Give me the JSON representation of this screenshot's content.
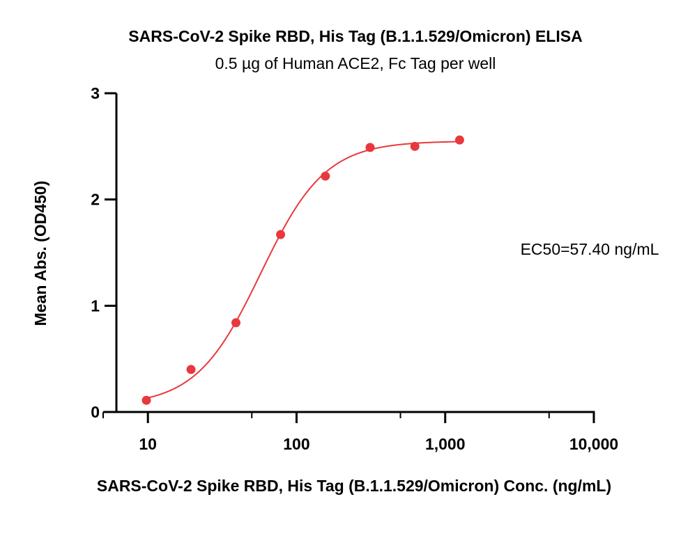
{
  "chart_data": {
    "type": "scatter",
    "title": "SARS-CoV-2 Spike RBD, His Tag (B.1.1.529/Omicron) ELISA",
    "subtitle": "0.5 µg of Human ACE2, Fc Tag per well",
    "xlabel": "SARS-CoV-2 Spike RBD, His Tag (B.1.1.529/Omicron) Conc. (ng/mL)",
    "ylabel": "Mean Abs. (OD450)",
    "x_scale": "log",
    "xlim": [
      5,
      10000
    ],
    "ylim": [
      0,
      3
    ],
    "x_ticks": [
      10,
      100,
      1000,
      10000
    ],
    "x_tick_labels": [
      "10",
      "100",
      "1,000",
      "10,000"
    ],
    "y_ticks": [
      0,
      1,
      2,
      3
    ],
    "y_tick_labels": [
      "0",
      "1",
      "2",
      "3"
    ],
    "grid": false,
    "annotation": "EC50=57.40 ng/mL",
    "color": "#e8383d",
    "series": [
      {
        "x": [
          9.77,
          19.5,
          39.1,
          78.1,
          156.3,
          312.5,
          625,
          1250
        ],
        "y": [
          0.11,
          0.4,
          0.84,
          1.67,
          2.22,
          2.49,
          2.5,
          2.56
        ]
      }
    ],
    "fit": {
      "type": "4PL",
      "bottom": 0.06,
      "top": 2.55,
      "ec50": 57.4,
      "hill": 2.0,
      "x_range": [
        9.77,
        1250
      ]
    }
  }
}
